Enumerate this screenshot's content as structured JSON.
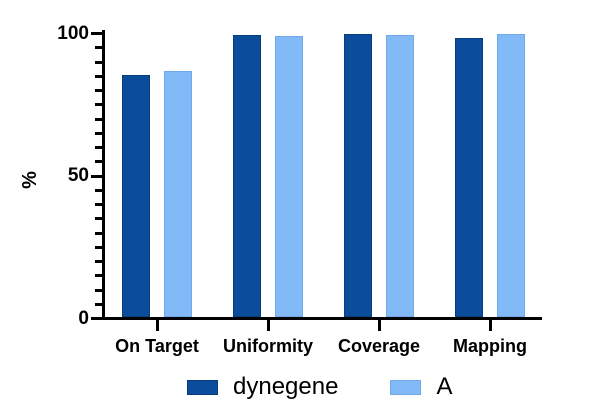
{
  "chart_data": {
    "type": "bar",
    "title": "",
    "categories": [
      "On Target",
      "Uniformity",
      "Coverage",
      "Mapping"
    ],
    "series": [
      {
        "name": "dynegene",
        "color": "#0C4C9C",
        "border_color": "#093D7C",
        "values": [
          85.5,
          99.4,
          99.8,
          98.4
        ]
      },
      {
        "name": "A",
        "color": "#82BAF7",
        "border_color": "#6FA9E9",
        "values": [
          86.8,
          99.0,
          99.6,
          99.7
        ]
      }
    ],
    "xlabel": "",
    "ylabel": "%",
    "ylim": [
      0,
      100
    ],
    "yticks": [
      0,
      50,
      100
    ],
    "ytick_labels": [
      "0",
      "50",
      "100"
    ],
    "minor_tick_step": 5,
    "grid": false,
    "legend_position": "bottom",
    "background": "#ffffff",
    "axis_color": "#000000"
  }
}
